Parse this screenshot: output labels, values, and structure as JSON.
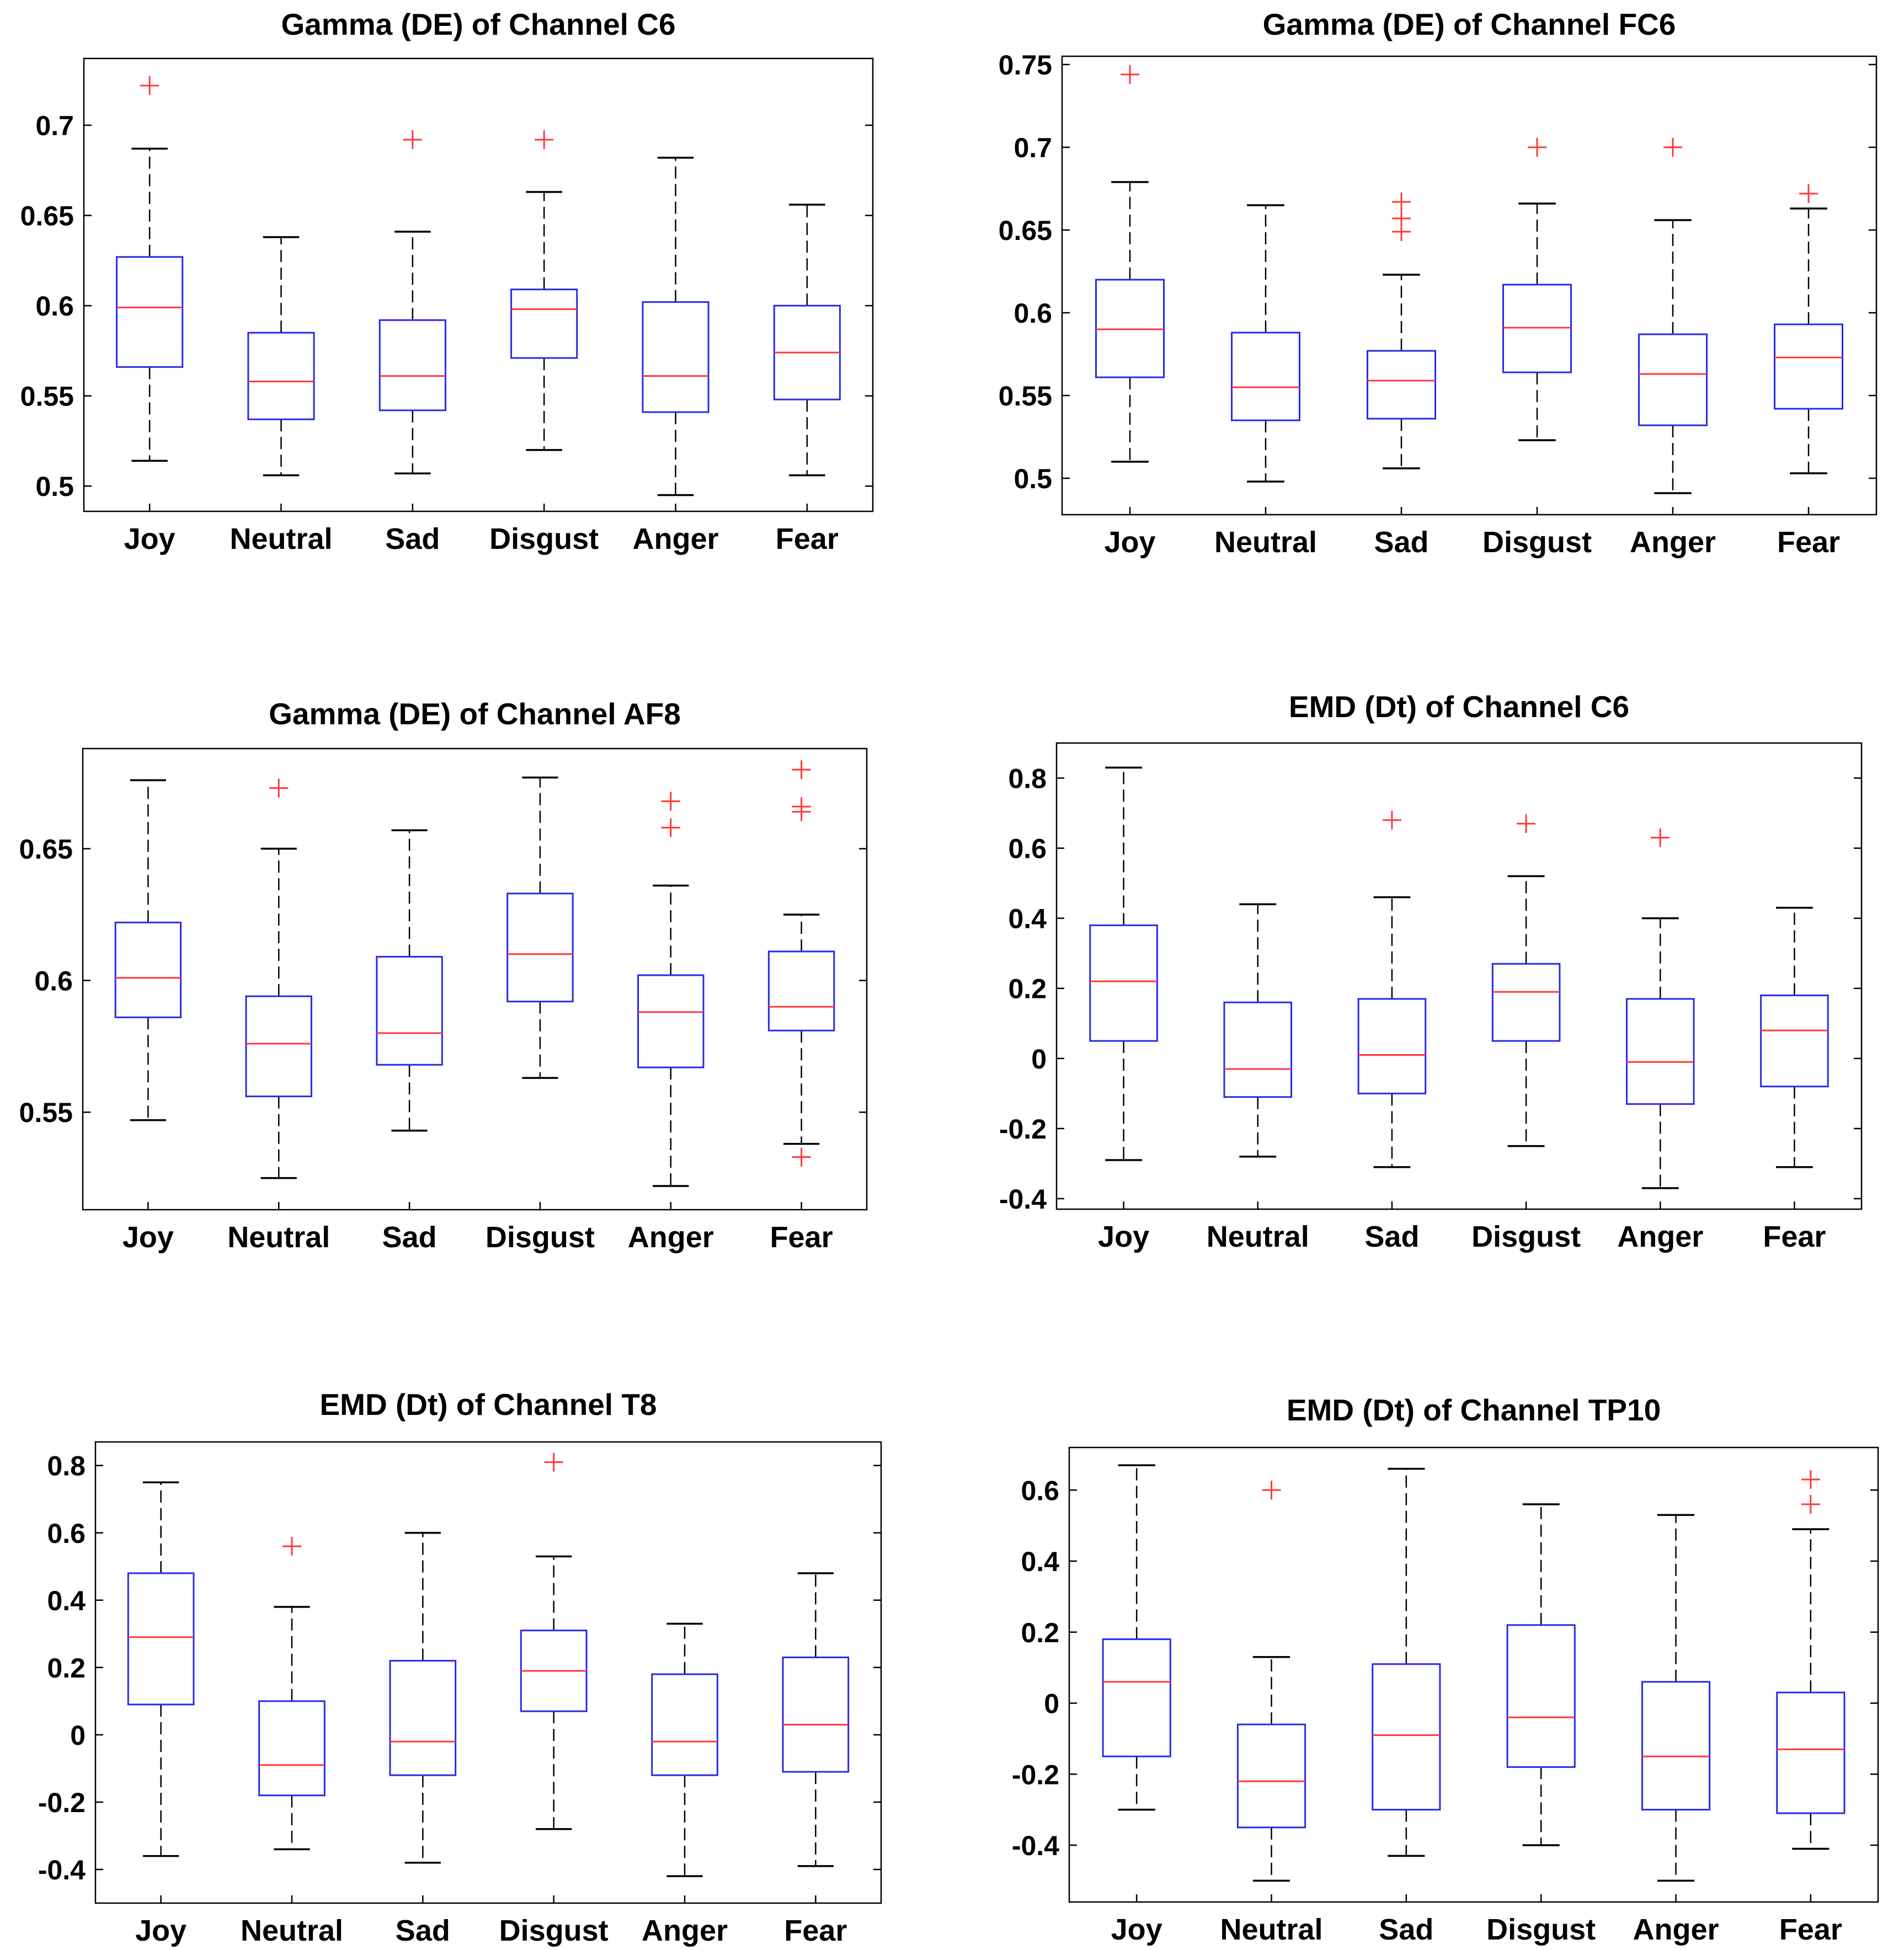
{
  "chart_data": [
    {
      "type": "box",
      "title": "Gamma (DE) of Channel  C6",
      "categories": [
        "Joy",
        "Neutral",
        "Sad",
        "Disgust",
        "Anger",
        "Fear"
      ],
      "ylim": [
        0.486,
        0.737
      ],
      "yticks": [
        0.5,
        0.55,
        0.6,
        0.65,
        0.7
      ],
      "ytick_labels": [
        "0.5",
        "0.55",
        "0.6",
        "0.65",
        "0.7"
      ],
      "boxes": [
        {
          "whislo": 0.514,
          "q1": 0.566,
          "med": 0.599,
          "q3": 0.627,
          "whishi": 0.687,
          "fliers": [
            0.722
          ]
        },
        {
          "whislo": 0.506,
          "q1": 0.537,
          "med": 0.558,
          "q3": 0.585,
          "whishi": 0.638,
          "fliers": []
        },
        {
          "whislo": 0.507,
          "q1": 0.542,
          "med": 0.561,
          "q3": 0.592,
          "whishi": 0.641,
          "fliers": [
            0.692
          ]
        },
        {
          "whislo": 0.52,
          "q1": 0.571,
          "med": 0.598,
          "q3": 0.609,
          "whishi": 0.663,
          "fliers": [
            0.692
          ]
        },
        {
          "whislo": 0.495,
          "q1": 0.541,
          "med": 0.561,
          "q3": 0.602,
          "whishi": 0.682,
          "fliers": []
        },
        {
          "whislo": 0.506,
          "q1": 0.548,
          "med": 0.574,
          "q3": 0.6,
          "whishi": 0.656,
          "fliers": []
        }
      ]
    },
    {
      "type": "box",
      "title": "Gamma (DE)  of Channel  FC6",
      "categories": [
        "Joy",
        "Neutral",
        "Sad",
        "Disgust",
        "Anger",
        "Fear"
      ],
      "ylim": [
        0.478,
        0.755
      ],
      "yticks": [
        0.5,
        0.55,
        0.6,
        0.65,
        0.7,
        0.75
      ],
      "ytick_labels": [
        "0.5",
        "0.55",
        "0.6",
        "0.65",
        "0.7",
        "0.75"
      ],
      "boxes": [
        {
          "whislo": 0.51,
          "q1": 0.561,
          "med": 0.59,
          "q3": 0.62,
          "whishi": 0.679,
          "fliers": [
            0.744
          ]
        },
        {
          "whislo": 0.498,
          "q1": 0.535,
          "med": 0.555,
          "q3": 0.588,
          "whishi": 0.665,
          "fliers": []
        },
        {
          "whislo": 0.506,
          "q1": 0.536,
          "med": 0.559,
          "q3": 0.577,
          "whishi": 0.623,
          "fliers": [
            0.649,
            0.657,
            0.667
          ]
        },
        {
          "whislo": 0.523,
          "q1": 0.564,
          "med": 0.591,
          "q3": 0.617,
          "whishi": 0.666,
          "fliers": [
            0.7
          ]
        },
        {
          "whislo": 0.491,
          "q1": 0.532,
          "med": 0.563,
          "q3": 0.587,
          "whishi": 0.656,
          "fliers": [
            0.7
          ]
        },
        {
          "whislo": 0.503,
          "q1": 0.542,
          "med": 0.573,
          "q3": 0.593,
          "whishi": 0.663,
          "fliers": [
            0.672
          ]
        }
      ]
    },
    {
      "type": "box",
      "title": "Gamma (DE)  of Channel  AF8",
      "categories": [
        "Joy",
        "Neutral",
        "Sad",
        "Disgust",
        "Anger",
        "Fear"
      ],
      "ylim": [
        0.513,
        0.688
      ],
      "yticks": [
        0.55,
        0.6,
        0.65
      ],
      "ytick_labels": [
        "0.55",
        "0.6",
        "0.65"
      ],
      "boxes": [
        {
          "whislo": 0.547,
          "q1": 0.586,
          "med": 0.601,
          "q3": 0.622,
          "whishi": 0.676,
          "fliers": []
        },
        {
          "whislo": 0.525,
          "q1": 0.556,
          "med": 0.576,
          "q3": 0.594,
          "whishi": 0.65,
          "fliers": [
            0.673
          ]
        },
        {
          "whislo": 0.543,
          "q1": 0.568,
          "med": 0.58,
          "q3": 0.609,
          "whishi": 0.657,
          "fliers": []
        },
        {
          "whislo": 0.563,
          "q1": 0.592,
          "med": 0.61,
          "q3": 0.633,
          "whishi": 0.677,
          "fliers": []
        },
        {
          "whislo": 0.522,
          "q1": 0.567,
          "med": 0.588,
          "q3": 0.602,
          "whishi": 0.636,
          "fliers": [
            0.658,
            0.668
          ]
        },
        {
          "whislo": 0.538,
          "q1": 0.581,
          "med": 0.59,
          "q3": 0.611,
          "whishi": 0.625,
          "fliers": [
            0.533,
            0.664,
            0.666,
            0.68
          ]
        }
      ]
    },
    {
      "type": "box",
      "title": "EMD (Dt)  of Channel  C6",
      "categories": [
        "Joy",
        "Neutral",
        "Sad",
        "Disgust",
        "Anger",
        "Fear"
      ],
      "ylim": [
        -0.43,
        0.9
      ],
      "yticks": [
        -0.4,
        -0.2,
        0,
        0.2,
        0.4,
        0.6,
        0.8
      ],
      "ytick_labels": [
        "-0.4",
        "-0.2",
        "0",
        "0.2",
        "0.4",
        "0.6",
        "0.8"
      ],
      "boxes": [
        {
          "whislo": -0.29,
          "q1": 0.05,
          "med": 0.22,
          "q3": 0.38,
          "whishi": 0.83,
          "fliers": []
        },
        {
          "whislo": -0.28,
          "q1": -0.11,
          "med": -0.03,
          "q3": 0.16,
          "whishi": 0.44,
          "fliers": []
        },
        {
          "whislo": -0.31,
          "q1": -0.1,
          "med": 0.01,
          "q3": 0.17,
          "whishi": 0.46,
          "fliers": [
            0.68
          ]
        },
        {
          "whislo": -0.25,
          "q1": 0.05,
          "med": 0.19,
          "q3": 0.27,
          "whishi": 0.52,
          "fliers": [
            0.67
          ]
        },
        {
          "whislo": -0.37,
          "q1": -0.13,
          "med": -0.01,
          "q3": 0.17,
          "whishi": 0.4,
          "fliers": [
            0.63
          ]
        },
        {
          "whislo": -0.31,
          "q1": -0.08,
          "med": 0.08,
          "q3": 0.18,
          "whishi": 0.43,
          "fliers": []
        }
      ]
    },
    {
      "type": "box",
      "title": "EMD (Dt)  of Channel  T8",
      "categories": [
        "Joy",
        "Neutral",
        "Sad",
        "Disgust",
        "Anger",
        "Fear"
      ],
      "ylim": [
        -0.5,
        0.87
      ],
      "yticks": [
        -0.4,
        -0.2,
        0,
        0.2,
        0.4,
        0.6,
        0.8
      ],
      "ytick_labels": [
        "-0.4",
        "-0.2",
        "0",
        "0.2",
        "0.4",
        "0.6",
        "0.8"
      ],
      "boxes": [
        {
          "whislo": -0.36,
          "q1": 0.09,
          "med": 0.29,
          "q3": 0.48,
          "whishi": 0.75,
          "fliers": []
        },
        {
          "whislo": -0.34,
          "q1": -0.18,
          "med": -0.09,
          "q3": 0.1,
          "whishi": 0.38,
          "fliers": [
            0.56
          ]
        },
        {
          "whislo": -0.38,
          "q1": -0.12,
          "med": -0.02,
          "q3": 0.22,
          "whishi": 0.6,
          "fliers": []
        },
        {
          "whislo": -0.28,
          "q1": 0.07,
          "med": 0.19,
          "q3": 0.31,
          "whishi": 0.53,
          "fliers": [
            0.81
          ]
        },
        {
          "whislo": -0.42,
          "q1": -0.12,
          "med": -0.02,
          "q3": 0.18,
          "whishi": 0.33,
          "fliers": []
        },
        {
          "whislo": -0.39,
          "q1": -0.11,
          "med": 0.03,
          "q3": 0.23,
          "whishi": 0.48,
          "fliers": []
        }
      ]
    },
    {
      "type": "box",
      "title": "EMD (Dt)  of Channel  TP10",
      "categories": [
        "Joy",
        "Neutral",
        "Sad",
        "Disgust",
        "Anger",
        "Fear"
      ],
      "ylim": [
        -0.56,
        0.72
      ],
      "yticks": [
        -0.4,
        -0.2,
        0,
        0.2,
        0.4,
        0.6
      ],
      "ytick_labels": [
        "-0.4",
        "-0.2",
        "0",
        "0.2",
        "0.4",
        "0.6"
      ],
      "boxes": [
        {
          "whislo": -0.3,
          "q1": -0.15,
          "med": 0.06,
          "q3": 0.18,
          "whishi": 0.67,
          "fliers": []
        },
        {
          "whislo": -0.5,
          "q1": -0.35,
          "med": -0.22,
          "q3": -0.06,
          "whishi": 0.13,
          "fliers": [
            0.6
          ]
        },
        {
          "whislo": -0.43,
          "q1": -0.3,
          "med": -0.09,
          "q3": 0.11,
          "whishi": 0.66,
          "fliers": []
        },
        {
          "whislo": -0.4,
          "q1": -0.18,
          "med": -0.04,
          "q3": 0.22,
          "whishi": 0.56,
          "fliers": []
        },
        {
          "whislo": -0.5,
          "q1": -0.3,
          "med": -0.15,
          "q3": 0.06,
          "whishi": 0.53,
          "fliers": []
        },
        {
          "whislo": -0.41,
          "q1": -0.31,
          "med": -0.13,
          "q3": 0.03,
          "whishi": 0.49,
          "fliers": [
            0.56,
            0.63
          ]
        }
      ]
    }
  ]
}
